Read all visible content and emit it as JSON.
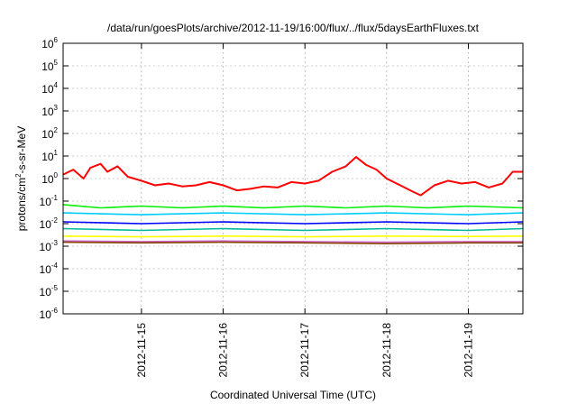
{
  "chart_data": {
    "type": "line",
    "title": "/data/run/goesPlots/archive/2012-11-19/16:00/flux/../flux/5daysEarthFluxes.txt",
    "xlabel": "Coordinated Universal Time (UTC)",
    "ylabel": "protons/cm2-s-sr-MeV",
    "ylabel_parts": {
      "base": "protons/cm",
      "sup": "2",
      "rest": "-s-sr-MeV"
    },
    "y_scale": "log",
    "ylim_exp": [
      -6,
      6
    ],
    "y_tick_exponents": [
      "-6",
      "-5",
      "-4",
      "-3",
      "-2",
      "-1",
      "0",
      "1",
      "2",
      "3",
      "4",
      "5",
      "6"
    ],
    "y_tick_base": "10",
    "x_range_days": [
      "2012-11-14T01:00",
      "2012-11-19T16:00"
    ],
    "x_ticks": [
      "2012-11-15",
      "2012-11-16",
      "2012-11-17",
      "2012-11-18",
      "2012-11-19"
    ],
    "grid": true,
    "legend": "none",
    "series": [
      {
        "color": "#ff0000",
        "points": [
          [
            "2012-11-14T01:00",
            1.5
          ],
          [
            "2012-11-14T04:00",
            2.5
          ],
          [
            "2012-11-14T07:00",
            1.0
          ],
          [
            "2012-11-14T09:00",
            3.0
          ],
          [
            "2012-11-14T12:00",
            4.5
          ],
          [
            "2012-11-14T14:00",
            2.0
          ],
          [
            "2012-11-14T17:00",
            3.5
          ],
          [
            "2012-11-14T20:00",
            1.2
          ],
          [
            "2012-11-15T00:00",
            0.8
          ],
          [
            "2012-11-15T04:00",
            0.5
          ],
          [
            "2012-11-15T08:00",
            0.6
          ],
          [
            "2012-11-15T12:00",
            0.45
          ],
          [
            "2012-11-15T16:00",
            0.5
          ],
          [
            "2012-11-15T20:00",
            0.7
          ],
          [
            "2012-11-16T00:00",
            0.5
          ],
          [
            "2012-11-16T04:00",
            0.3
          ],
          [
            "2012-11-16T08:00",
            0.35
          ],
          [
            "2012-11-16T12:00",
            0.45
          ],
          [
            "2012-11-16T16:00",
            0.4
          ],
          [
            "2012-11-16T20:00",
            0.7
          ],
          [
            "2012-11-17T00:00",
            0.6
          ],
          [
            "2012-11-17T04:00",
            0.8
          ],
          [
            "2012-11-17T08:00",
            2.0
          ],
          [
            "2012-11-17T12:00",
            3.5
          ],
          [
            "2012-11-17T15:00",
            9.0
          ],
          [
            "2012-11-17T18:00",
            4.0
          ],
          [
            "2012-11-17T21:00",
            2.5
          ],
          [
            "2012-11-18T00:00",
            1.0
          ],
          [
            "2012-11-18T04:00",
            0.5
          ],
          [
            "2012-11-18T08:00",
            0.25
          ],
          [
            "2012-11-18T10:00",
            0.18
          ],
          [
            "2012-11-18T14:00",
            0.5
          ],
          [
            "2012-11-18T18:00",
            0.8
          ],
          [
            "2012-11-18T22:00",
            0.6
          ],
          [
            "2012-11-19T02:00",
            0.7
          ],
          [
            "2012-11-19T06:00",
            0.4
          ],
          [
            "2012-11-19T10:00",
            0.6
          ],
          [
            "2012-11-19T13:00",
            2.0
          ],
          [
            "2012-11-19T16:00",
            2.0
          ]
        ]
      },
      {
        "color": "#00ee00",
        "points": [
          [
            "2012-11-14T01:00",
            0.07
          ],
          [
            "2012-11-14T12:00",
            0.05
          ],
          [
            "2012-11-15T00:00",
            0.06
          ],
          [
            "2012-11-15T12:00",
            0.05
          ],
          [
            "2012-11-16T00:00",
            0.06
          ],
          [
            "2012-11-16T12:00",
            0.05
          ],
          [
            "2012-11-17T00:00",
            0.06
          ],
          [
            "2012-11-17T12:00",
            0.05
          ],
          [
            "2012-11-18T00:00",
            0.06
          ],
          [
            "2012-11-18T12:00",
            0.05
          ],
          [
            "2012-11-19T00:00",
            0.06
          ],
          [
            "2012-11-19T16:00",
            0.05
          ]
        ]
      },
      {
        "color": "#00ccff",
        "points": [
          [
            "2012-11-14T01:00",
            0.03
          ],
          [
            "2012-11-15T00:00",
            0.025
          ],
          [
            "2012-11-16T00:00",
            0.03
          ],
          [
            "2012-11-17T00:00",
            0.025
          ],
          [
            "2012-11-18T00:00",
            0.03
          ],
          [
            "2012-11-19T00:00",
            0.025
          ],
          [
            "2012-11-19T16:00",
            0.03
          ]
        ]
      },
      {
        "color": "#0000ff",
        "points": [
          [
            "2012-11-14T01:00",
            0.012
          ],
          [
            "2012-11-15T00:00",
            0.01
          ],
          [
            "2012-11-16T00:00",
            0.012
          ],
          [
            "2012-11-17T00:00",
            0.01
          ],
          [
            "2012-11-18T00:00",
            0.012
          ],
          [
            "2012-11-19T00:00",
            0.01
          ],
          [
            "2012-11-19T16:00",
            0.012
          ]
        ]
      },
      {
        "color": "#00bb99",
        "points": [
          [
            "2012-11-14T01:00",
            0.006
          ],
          [
            "2012-11-15T00:00",
            0.005
          ],
          [
            "2012-11-16T00:00",
            0.006
          ],
          [
            "2012-11-17T00:00",
            0.005
          ],
          [
            "2012-11-18T00:00",
            0.006
          ],
          [
            "2012-11-19T00:00",
            0.005
          ],
          [
            "2012-11-19T16:00",
            0.006
          ]
        ]
      },
      {
        "color": "#ffff00",
        "points": [
          [
            "2012-11-14T01:00",
            0.0028
          ],
          [
            "2012-11-15T00:00",
            0.0026
          ],
          [
            "2012-11-16T00:00",
            0.0028
          ],
          [
            "2012-11-17T00:00",
            0.0026
          ],
          [
            "2012-11-18T00:00",
            0.0028
          ],
          [
            "2012-11-19T00:00",
            0.0027
          ],
          [
            "2012-11-19T16:00",
            0.0028
          ]
        ]
      },
      {
        "color": "#cc66cc",
        "points": [
          [
            "2012-11-14T01:00",
            0.0017
          ],
          [
            "2012-11-15T00:00",
            0.0016
          ],
          [
            "2012-11-16T00:00",
            0.0017
          ],
          [
            "2012-11-17T00:00",
            0.0016
          ],
          [
            "2012-11-18T00:00",
            0.0015
          ],
          [
            "2012-11-19T00:00",
            0.0016
          ],
          [
            "2012-11-19T16:00",
            0.0016
          ]
        ]
      },
      {
        "color": "#884400",
        "points": [
          [
            "2012-11-14T01:00",
            0.0015
          ],
          [
            "2012-11-15T00:00",
            0.0014
          ],
          [
            "2012-11-16T00:00",
            0.0015
          ],
          [
            "2012-11-17T00:00",
            0.0014
          ],
          [
            "2012-11-18T00:00",
            0.0013
          ],
          [
            "2012-11-19T00:00",
            0.0014
          ],
          [
            "2012-11-19T16:00",
            0.0014
          ]
        ]
      }
    ]
  }
}
